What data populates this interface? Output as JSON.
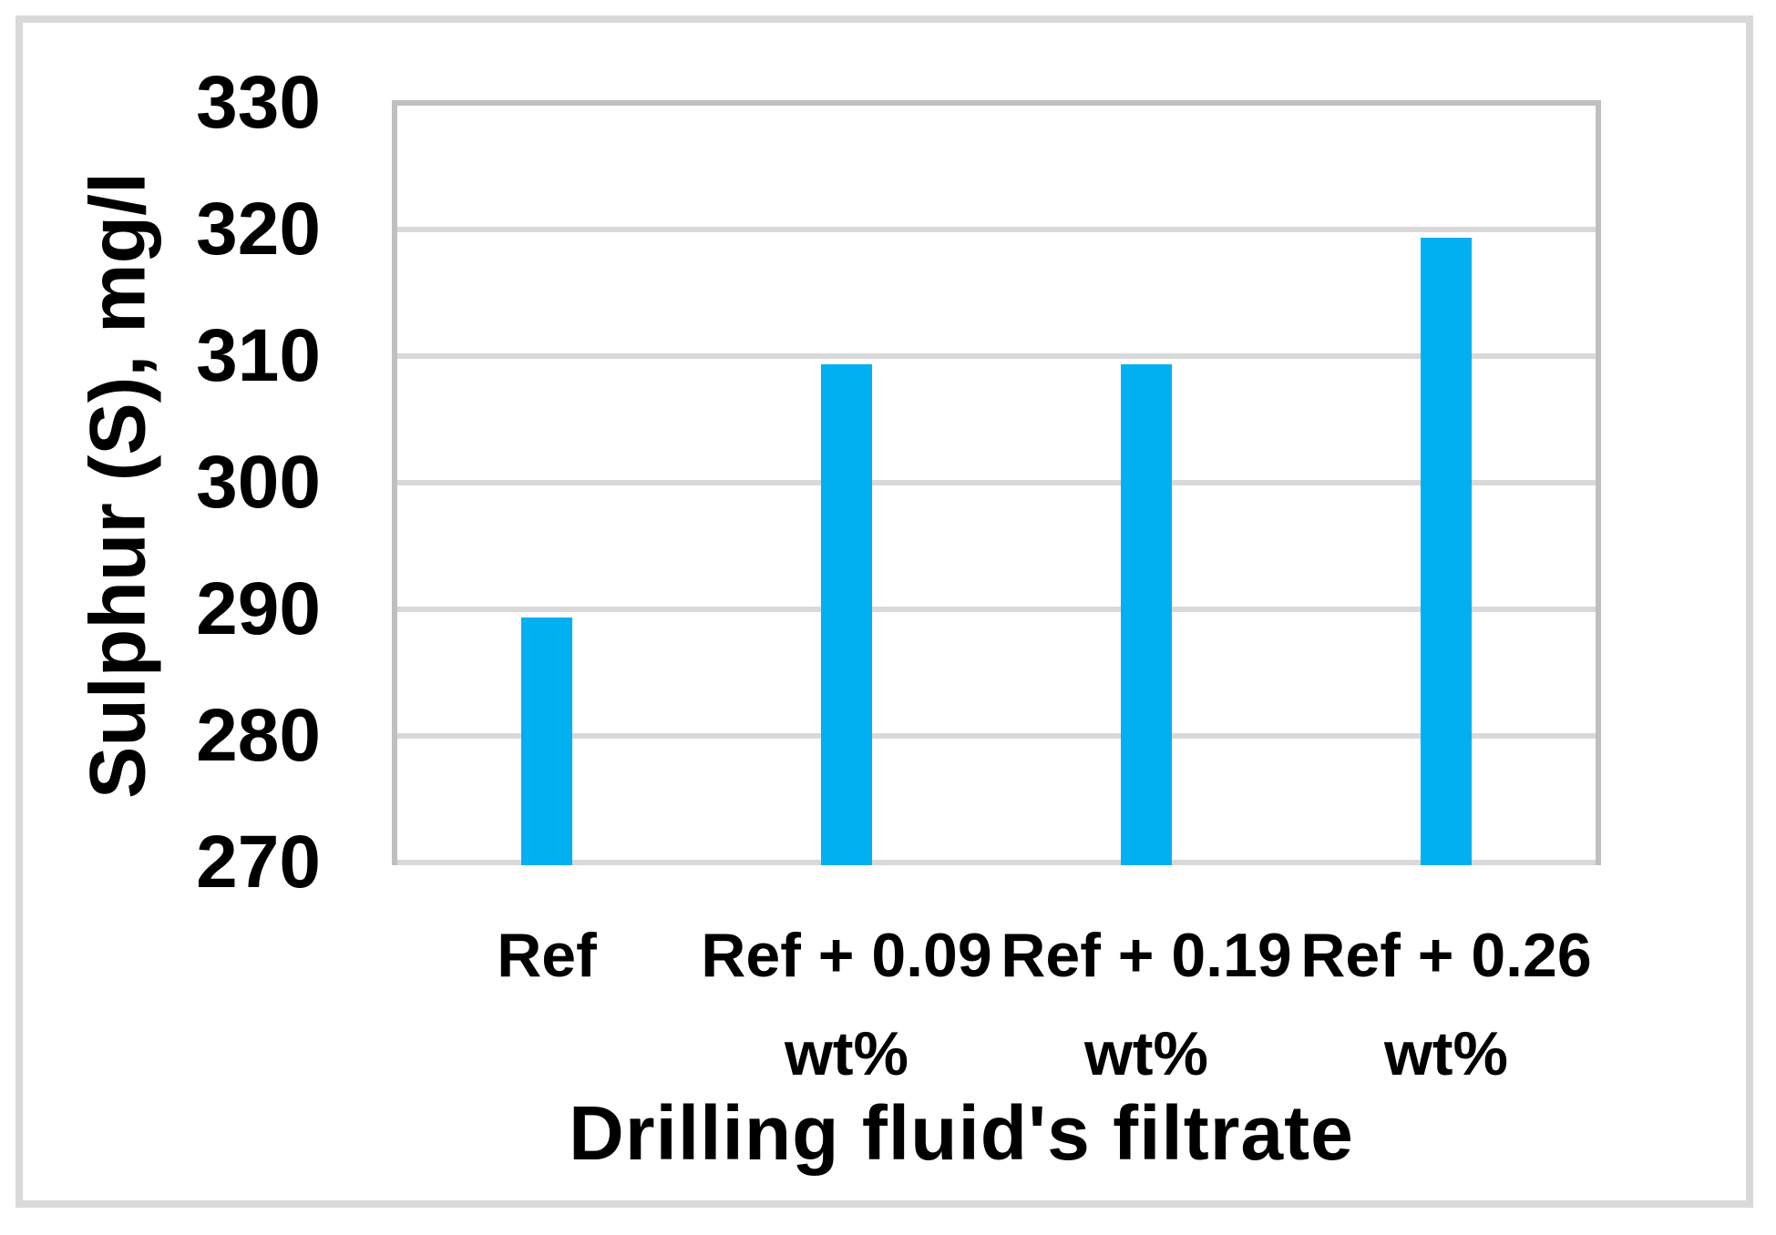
{
  "chart_data": {
    "type": "bar",
    "title": "",
    "categories": [
      "Ref",
      "Ref + 0.09 wt%",
      "Ref + 0.19 wt%",
      "Ref + 0.26 wt%"
    ],
    "category_label_lines": [
      [
        "Ref"
      ],
      [
        "Ref + 0.09",
        "wt%"
      ],
      [
        "Ref + 0.19",
        "wt%"
      ],
      [
        "Ref + 0.26",
        "wt%"
      ]
    ],
    "values": [
      290,
      310,
      310,
      320
    ],
    "xlabel": "Drilling fluid's filtrate",
    "ylabel": "Sulphur (S), mg/l",
    "ylim": [
      270,
      330
    ],
    "ytick_step": 10,
    "yticks": [
      330,
      320,
      310,
      300,
      290,
      280,
      270
    ],
    "grid": true,
    "legend_position": "none",
    "colors": {
      "bar": "#00b0f0",
      "gridline": "#d9d9d9",
      "plot_border": "#bfbfbf",
      "outer_frame": "#d9d9d9",
      "text": "#000000",
      "background": "#ffffff"
    }
  }
}
